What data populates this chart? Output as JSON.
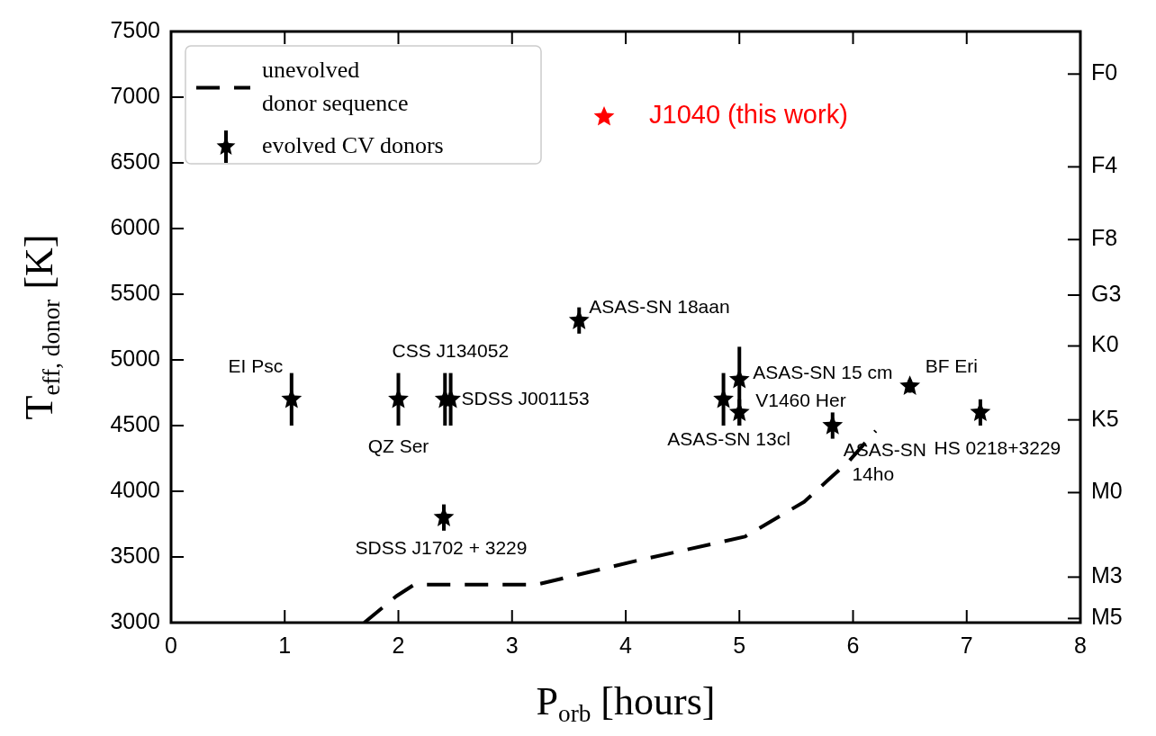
{
  "chart_data": {
    "type": "scatter",
    "xlabel": "P$_{orb}$ [hours]",
    "ylabel": "T$_{eff, donor}$ [K]",
    "xlim": [
      0,
      8
    ],
    "xticks": [
      0,
      1,
      2,
      3,
      4,
      5,
      6,
      7,
      8
    ],
    "ylim": [
      3000,
      7500
    ],
    "yticks": [
      3000,
      3500,
      4000,
      4500,
      5000,
      5500,
      6000,
      6500,
      7000,
      7500
    ],
    "grid": false,
    "legend": "top left",
    "series": [
      {
        "name": "unevolved\ndonor sequence",
        "type": "line",
        "color": "#000000",
        "line_style": "dashed",
        "marker": "none",
        "x": [
          1.7,
          1.98,
          2.14,
          3.03,
          3.22,
          4.09,
          5.05,
          5.57,
          5.78,
          5.97,
          6.2
        ],
        "values": [
          3000,
          3200,
          3290,
          3290,
          3290,
          3470,
          3655,
          3920,
          4085,
          4235,
          4460
        ]
      },
      {
        "name": "evolved CV donors",
        "color": "#000000",
        "marker": "star",
        "x": [
          1.06,
          2.0,
          2.41,
          2.46,
          2.4,
          3.59,
          4.86,
          5.0,
          5.0,
          5.82,
          6.5,
          7.12
        ],
        "values": [
          4700,
          4700,
          4700,
          4700,
          3800,
          5300,
          4700,
          4850,
          4600,
          4500,
          4800,
          4600
        ],
        "errors": [
          200,
          200,
          200,
          200,
          100,
          100,
          200,
          [
            4500,
            5100
          ],
          100,
          100,
          50,
          100
        ]
      },
      {
        "name": "J1040 (this work)",
        "color": "#ff0000",
        "marker": "star",
        "x": [
          3.81
        ],
        "values": [
          6850
        ]
      }
    ],
    "annotations": [
      {
        "text": "EI Psc",
        "x": 1.06,
        "y": 4700
      },
      {
        "text": "QZ Ser",
        "x": 2.0,
        "y": 4700
      },
      {
        "text": "CSS J134052",
        "x": 2.41,
        "y": 4700
      },
      {
        "text": "SDSS J001153",
        "x": 2.46,
        "y": 4700
      },
      {
        "text": "SDSS J1702 + 3229",
        "x": 2.4,
        "y": 3800
      },
      {
        "text": "ASAS-SN 18aan",
        "x": 3.59,
        "y": 5300
      },
      {
        "text": "ASAS-SN 15 cm",
        "x": 5.0,
        "y": 4850
      },
      {
        "text": "ASAS-SN 13cl",
        "x": 4.86,
        "y": 4700
      },
      {
        "text": "V1460 Her",
        "x": 5.0,
        "y": 4600
      },
      {
        "text": "ASAS-SN\n14ho",
        "x": 5.82,
        "y": 4500
      },
      {
        "text": "BF Eri",
        "x": 6.5,
        "y": 4800
      },
      {
        "text": "HS 0218+3229",
        "x": 7.12,
        "y": 4600
      },
      "F0",
      "F4",
      "F8",
      "G3",
      "K0",
      "K5",
      "M0",
      "M3",
      "M5"
    ]
  }
}
